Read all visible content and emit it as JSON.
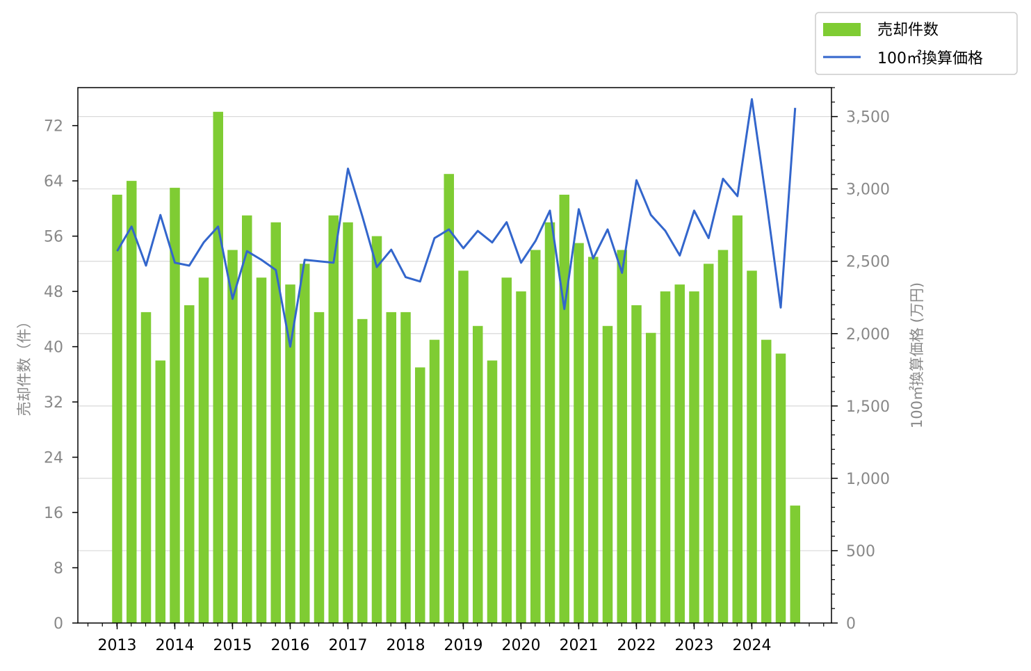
{
  "chart_data": {
    "type": "bar",
    "x_tick_labels": [
      "2013",
      "2014",
      "2015",
      "2016",
      "2017",
      "2018",
      "2019",
      "2020",
      "2021",
      "2022",
      "2023",
      "2024"
    ],
    "ylabel_left": "売却件数（件）",
    "ylabel_right": "100㎡換算価格 (万円)",
    "ylim_left": [
      0,
      77.5
    ],
    "ylim_right": [
      0,
      3700
    ],
    "yticks_left": [
      0,
      8,
      16,
      24,
      32,
      40,
      48,
      56,
      64,
      72
    ],
    "yticks_right": [
      0,
      500,
      1000,
      1500,
      2000,
      2500,
      3000,
      3500
    ],
    "yticks_right_labels": [
      "0",
      "500",
      "1,000",
      "1,500",
      "2,000",
      "2,500",
      "3,000",
      "3,500"
    ],
    "grid": "horizontal gridlines on right axis",
    "legend_position": "top-right (outside plot)",
    "series": [
      {
        "name": "売却件数",
        "type": "bar",
        "axis": "left",
        "color": "#7fcc33",
        "values": [
          62,
          64,
          45,
          38,
          63,
          46,
          50,
          74,
          54,
          59,
          50,
          58,
          49,
          52,
          45,
          59,
          58,
          44,
          56,
          45,
          45,
          37,
          41,
          65,
          51,
          43,
          38,
          50,
          48,
          54,
          58,
          62,
          55,
          53,
          43,
          54,
          46,
          42,
          48,
          49,
          48,
          52,
          54,
          59,
          51,
          41,
          39,
          17
        ]
      },
      {
        "name": "100㎡換算価格",
        "type": "line",
        "axis": "right",
        "color": "#3366cc",
        "values": [
          2570,
          2740,
          2470,
          2820,
          2490,
          2470,
          2630,
          2740,
          2240,
          2570,
          2510,
          2440,
          1910,
          2510,
          2500,
          2490,
          3140,
          2810,
          2460,
          2580,
          2390,
          2360,
          2660,
          2720,
          2590,
          2710,
          2630,
          2770,
          2490,
          2640,
          2850,
          2170,
          2860,
          2520,
          2720,
          2420,
          3060,
          2820,
          2710,
          2540,
          2850,
          2660,
          3070,
          2950,
          3620,
          2920,
          2180,
          3560
        ]
      }
    ]
  }
}
